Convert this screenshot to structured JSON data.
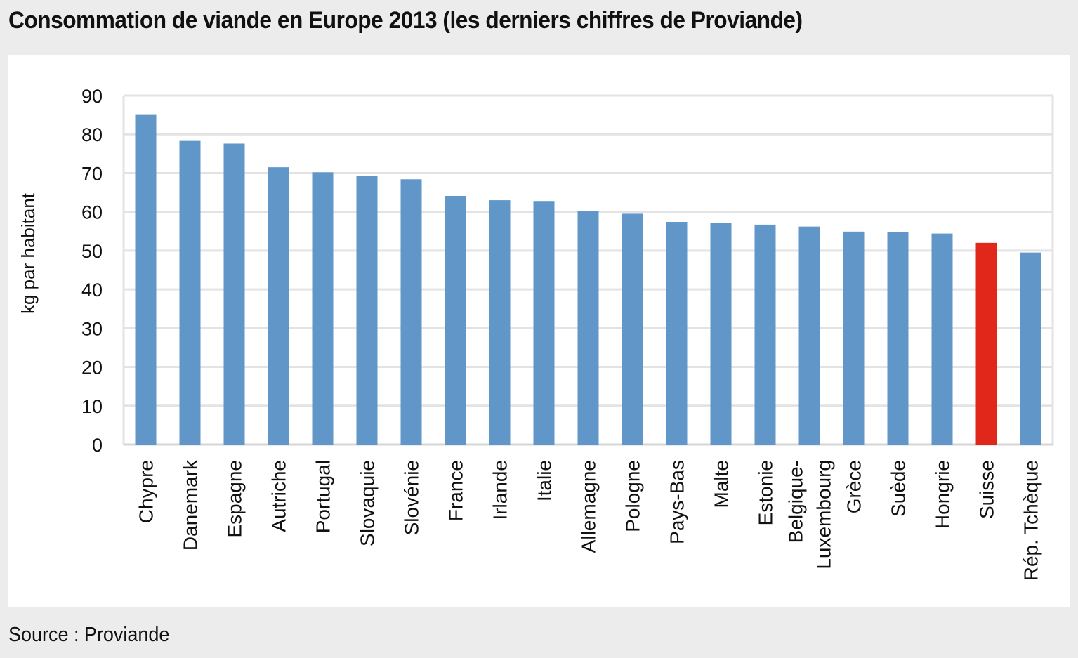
{
  "title": "Consommation de viande en Europe 2013  (les derniers chiffres de Proviande)",
  "source": "Source : Proviande",
  "chart_data": {
    "type": "bar",
    "title": "Consommation de viande en Europe 2013  (les derniers chiffres de Proviande)",
    "xlabel": "",
    "ylabel": "kg par habitant",
    "ylim": [
      0,
      90
    ],
    "yticks": [
      0,
      10,
      20,
      30,
      40,
      50,
      60,
      70,
      80,
      90
    ],
    "grid": true,
    "categories": [
      "Chypre",
      "Danemark",
      "Espagne",
      "Autriche",
      "Portugal",
      "Slovaquie",
      "Slovénie",
      "France",
      "Irlande",
      "Italie",
      "Allemagne",
      "Pologne",
      "Pays-Bas",
      "Malte",
      "Estonie",
      "Belgique-\nLuxembourg",
      "Grèce",
      "Suède",
      "Hongrie",
      "Suisse",
      "Rép. Tchèque"
    ],
    "values": [
      85,
      78.3,
      77.6,
      71.5,
      70.2,
      69.3,
      68.4,
      64.1,
      63,
      62.8,
      60.3,
      59.5,
      57.4,
      57.1,
      56.7,
      56.2,
      54.9,
      54.7,
      54.4,
      52,
      49.5
    ],
    "colors": {
      "default": "#6096c8",
      "highlight": "#e0271a",
      "highlight_category": "Suisse",
      "grid": "#e3e3e3"
    }
  }
}
